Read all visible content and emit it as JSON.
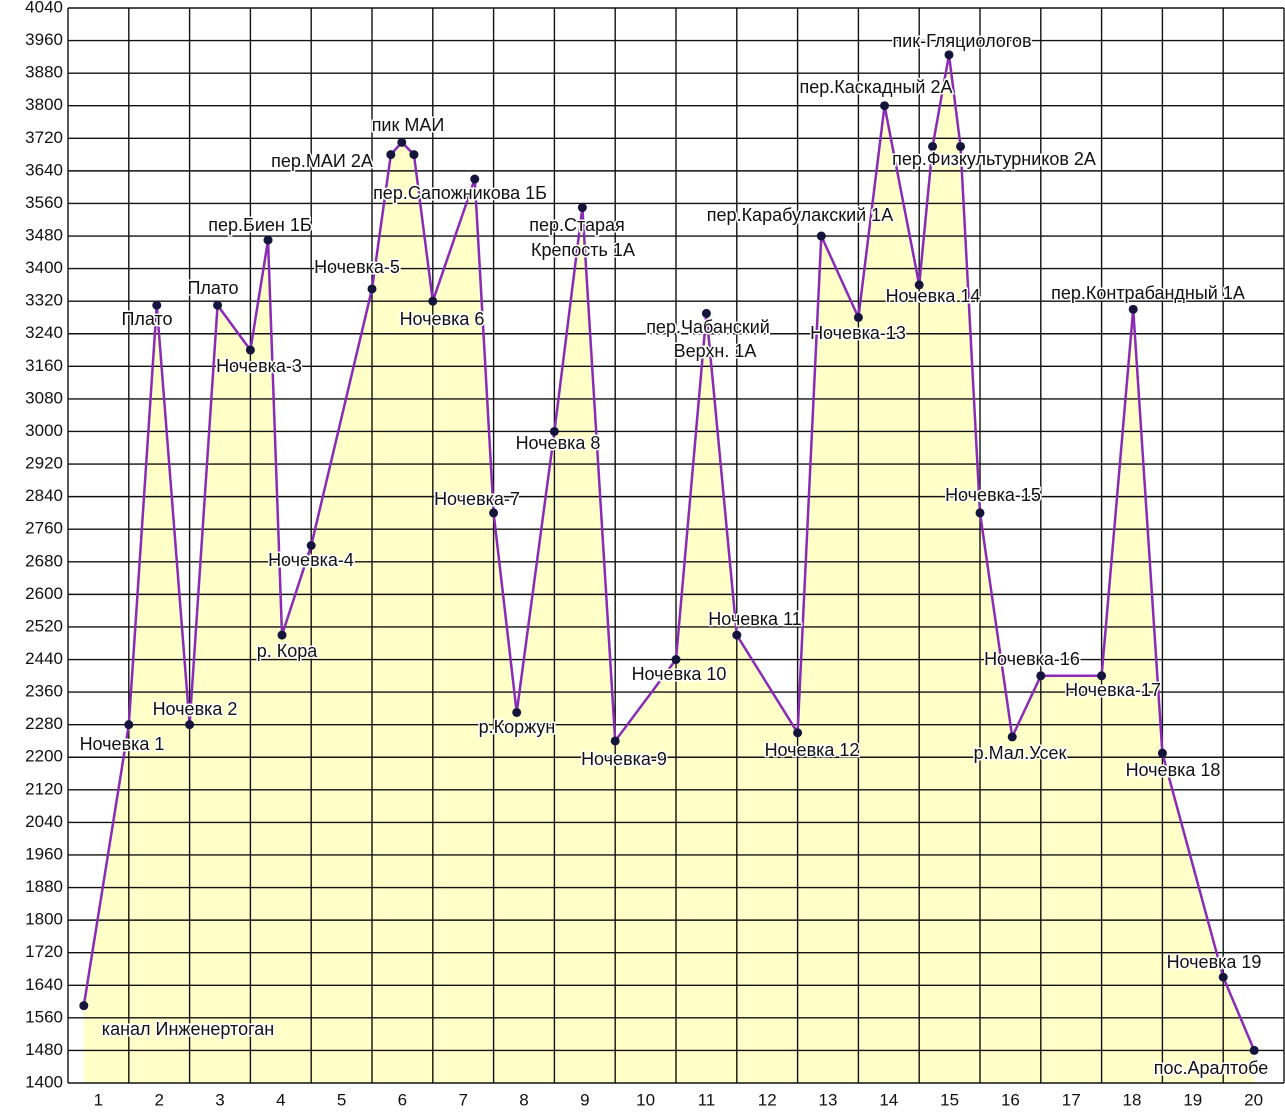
{
  "chart_data": {
    "type": "line",
    "xlim": [
      0,
      20
    ],
    "xticks": [
      {
        "value": 0.5,
        "label": "1"
      },
      {
        "value": 1.5,
        "label": "2"
      },
      {
        "value": 2.5,
        "label": "3"
      },
      {
        "value": 3.5,
        "label": "4"
      },
      {
        "value": 4.5,
        "label": "5"
      },
      {
        "value": 5.5,
        "label": "6"
      },
      {
        "value": 6.5,
        "label": "7"
      },
      {
        "value": 7.5,
        "label": "8"
      },
      {
        "value": 8.5,
        "label": "9"
      },
      {
        "value": 9.5,
        "label": "10"
      },
      {
        "value": 10.5,
        "label": "11"
      },
      {
        "value": 11.5,
        "label": "12"
      },
      {
        "value": 12.5,
        "label": "13"
      },
      {
        "value": 13.5,
        "label": "14"
      },
      {
        "value": 14.5,
        "label": "15"
      },
      {
        "value": 15.5,
        "label": "16"
      },
      {
        "value": 16.5,
        "label": "17"
      },
      {
        "value": 17.5,
        "label": "18"
      },
      {
        "value": 18.5,
        "label": "19"
      },
      {
        "value": 19.5,
        "label": "20"
      }
    ],
    "ylim": [
      1400,
      4040
    ],
    "yticks": [
      1400,
      1480,
      1560,
      1640,
      1720,
      1800,
      1880,
      1960,
      2040,
      2120,
      2200,
      2280,
      2360,
      2440,
      2520,
      2600,
      2680,
      2760,
      2840,
      2920,
      3000,
      3080,
      3160,
      3240,
      3320,
      3400,
      3480,
      3560,
      3640,
      3720,
      3800,
      3880,
      3960,
      4040
    ],
    "grid": true,
    "line_color": "#8a2bb8",
    "area_color": "#ffffc8",
    "marker_color": "#14143c",
    "x": [
      0.26,
      1,
      1.46,
      2,
      2.46,
      3,
      3.29,
      3.52,
      4,
      5,
      5.31,
      5.49,
      5.69,
      6,
      6.69,
      7,
      7.38,
      8,
      8.46,
      9,
      10,
      10.5,
      11,
      12,
      12.39,
      13,
      13.43,
      14,
      14.22,
      14.49,
      14.68,
      15,
      15.53,
      16,
      17,
      17.52,
      18,
      19,
      19.51
    ],
    "values": [
      1590,
      2280,
      3310,
      2280,
      3310,
      3200,
      3470,
      2500,
      2720,
      3350,
      3680,
      3710,
      3680,
      3320,
      3620,
      2800,
      2310,
      3000,
      3550,
      2240,
      2440,
      3290,
      2500,
      2260,
      3480,
      3280,
      3800,
      3360,
      3700,
      3925,
      3700,
      2800,
      2250,
      2400,
      2400,
      3300,
      2210,
      1660,
      1480
    ],
    "point_labels": [
      "канал Инженертоган",
      "Ночевка 1",
      "Плато",
      "Ночевка 2",
      "Плато",
      "Ночевка-3",
      "пер.Биен 1Б",
      "р. Кора",
      "Ночевка-4",
      "Ночевка-5",
      "пер.МАИ 2А",
      "пик МАИ",
      null,
      "Ночевка 6",
      "пер.Сапожникова 1Б",
      "Ночевка-7",
      "р.Коржун",
      "Ночевка 8",
      [
        "пер.Старая",
        "Крепость 1А"
      ],
      "Ночевка-9",
      "Ночевка 10",
      [
        "пер.Чабанский",
        "Верхн. 1А"
      ],
      "Ночевка 11",
      "Ночевка 12",
      "пер.Карабулакский 1А",
      "Ночевка-13",
      "пер.Каскадный 2А",
      "Ночевка 14",
      null,
      "пик-Гляциологов",
      "пер.Физкультурников 2А",
      "Ночевка-15",
      "р.Мал.Усек",
      "Ночевка-16",
      "Ночевка-17",
      "пер.Контрабандный 1А",
      "Ночевка 18",
      "Ночевка 19",
      "пос.Аралтобе"
    ]
  }
}
